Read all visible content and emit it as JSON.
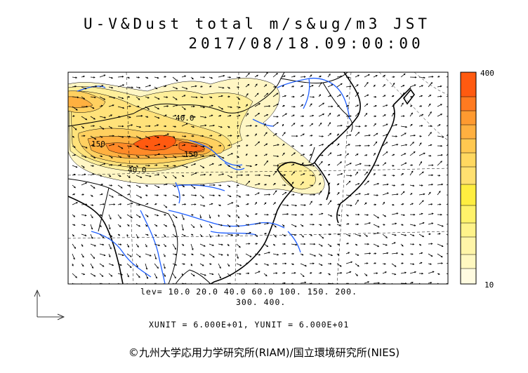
{
  "title": "U-V&Dust total m/s&ug/m3 JST",
  "datetime": "2017/08/18.09:00:00",
  "colorbar": {
    "max_label": "400",
    "min_label": "10"
  },
  "contour_labels": [
    "40.0",
    "150",
    "150",
    "40.0"
  ],
  "levels_line1": "lev= 10.0 20.0 40.0 60.0 100. 150. 200.",
  "levels_line2": "300. 400.",
  "units": "XUNIT = 6.000E+01, YUNIT = 6.000E+01",
  "copyright": "©九州大学応用力学研究所(RIAM)/国立環境研究所(NIES)",
  "colors": {
    "coast": "#000000",
    "river": "#1f5fff",
    "low": "#fff8c8",
    "mid": "#ffe27a",
    "high": "#ff9a30",
    "peak": "#ff5a10"
  }
}
